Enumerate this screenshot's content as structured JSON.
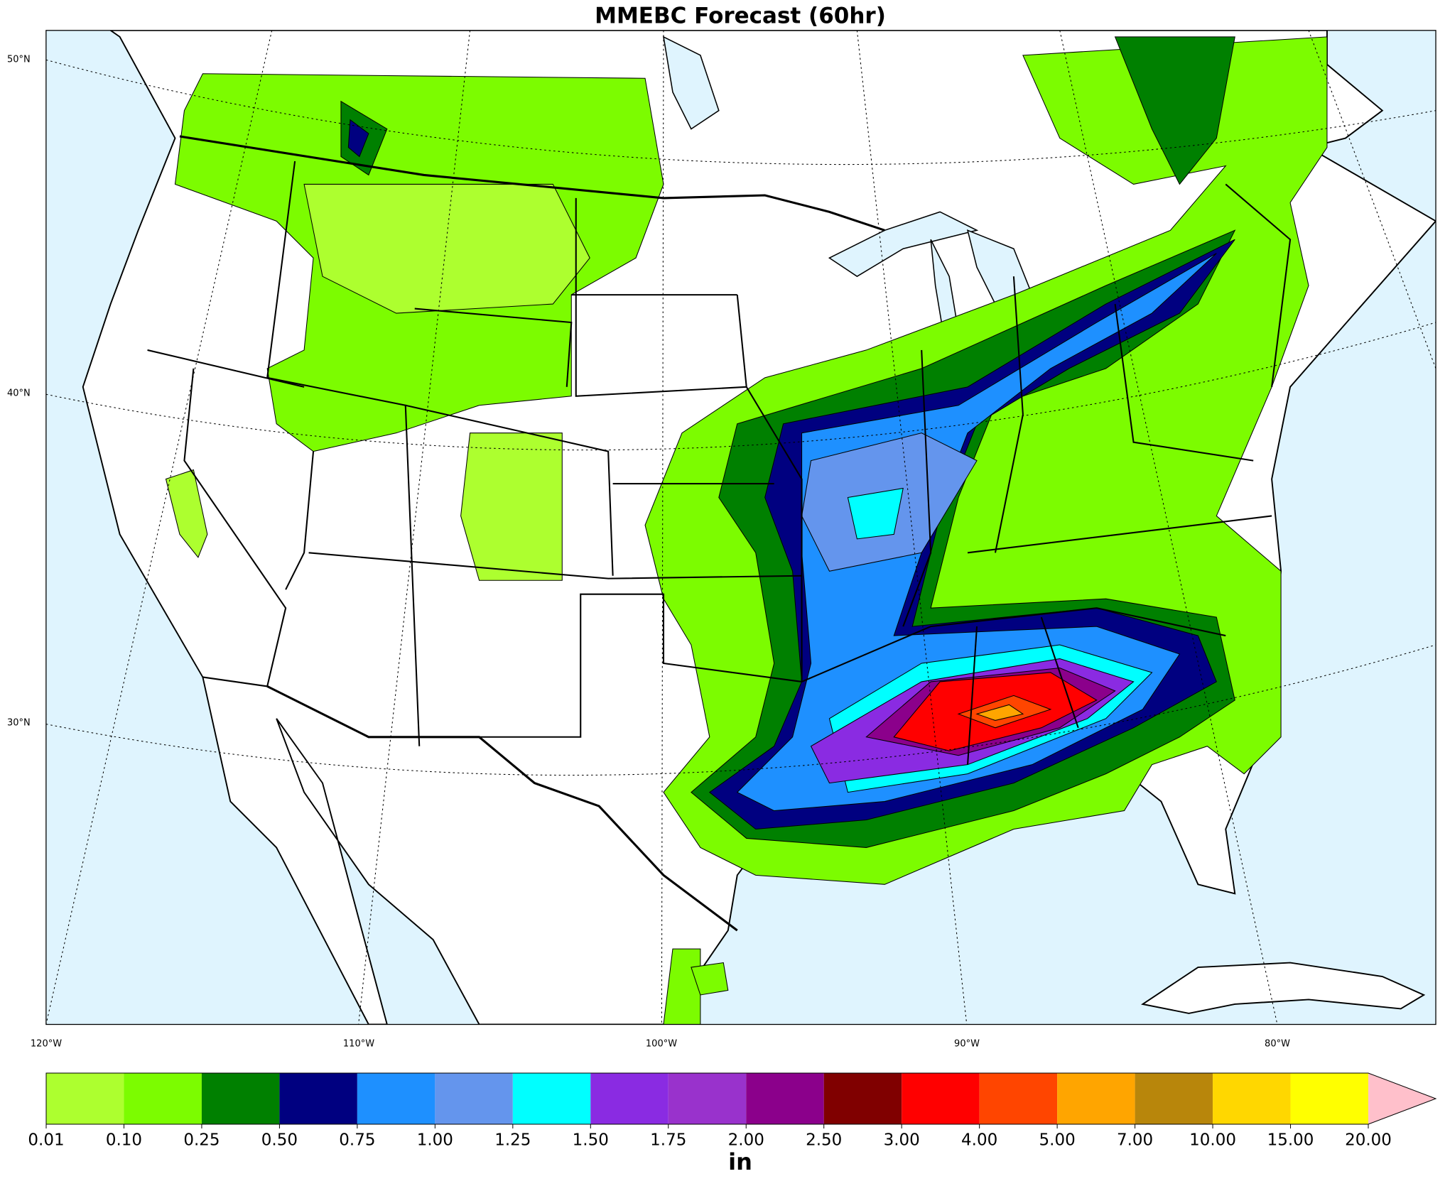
{
  "title": "MMEBC Forecast (60hr)",
  "map": {
    "lat_labels": [
      "50°N",
      "40°N",
      "30°N"
    ],
    "lon_labels": [
      "120°W",
      "110°W",
      "100°W",
      "90°W",
      "80°W"
    ]
  },
  "colorbar": {
    "label": "in",
    "bounds": [
      {
        "value": 0.01,
        "label": "0.01"
      },
      {
        "value": 0.1,
        "label": "0.10"
      },
      {
        "value": 0.25,
        "label": "0.25"
      },
      {
        "value": 0.5,
        "label": "0.50"
      },
      {
        "value": 0.75,
        "label": "0.75"
      },
      {
        "value": 1,
        "label": "1.00"
      },
      {
        "value": 1.25,
        "label": "1.25"
      },
      {
        "value": 1.5,
        "label": "1.50"
      },
      {
        "value": 1.75,
        "label": "1.75"
      },
      {
        "value": 2,
        "label": "2.00"
      },
      {
        "value": 2.5,
        "label": "2.50"
      },
      {
        "value": 3,
        "label": "3.00"
      },
      {
        "value": 4,
        "label": "4.00"
      },
      {
        "value": 5,
        "label": "5.00"
      },
      {
        "value": 7,
        "label": "7.00"
      },
      {
        "value": 10,
        "label": "10.00"
      },
      {
        "value": 15,
        "label": "15.00"
      },
      {
        "value": 20,
        "label": "20.00"
      }
    ],
    "colors": [
      "#adff2f",
      "#7cfc00",
      "#008000",
      "#000080",
      "#1e90ff",
      "#6495ed",
      "#00ffff",
      "#8a2be2",
      "#9932cc",
      "#8b008b",
      "#800000",
      "#ff0000",
      "#ff4500",
      "#ffa500",
      "#b8860b",
      "#ffd700",
      "#ffff00"
    ],
    "extend_color": "#ffc0cb"
  }
}
